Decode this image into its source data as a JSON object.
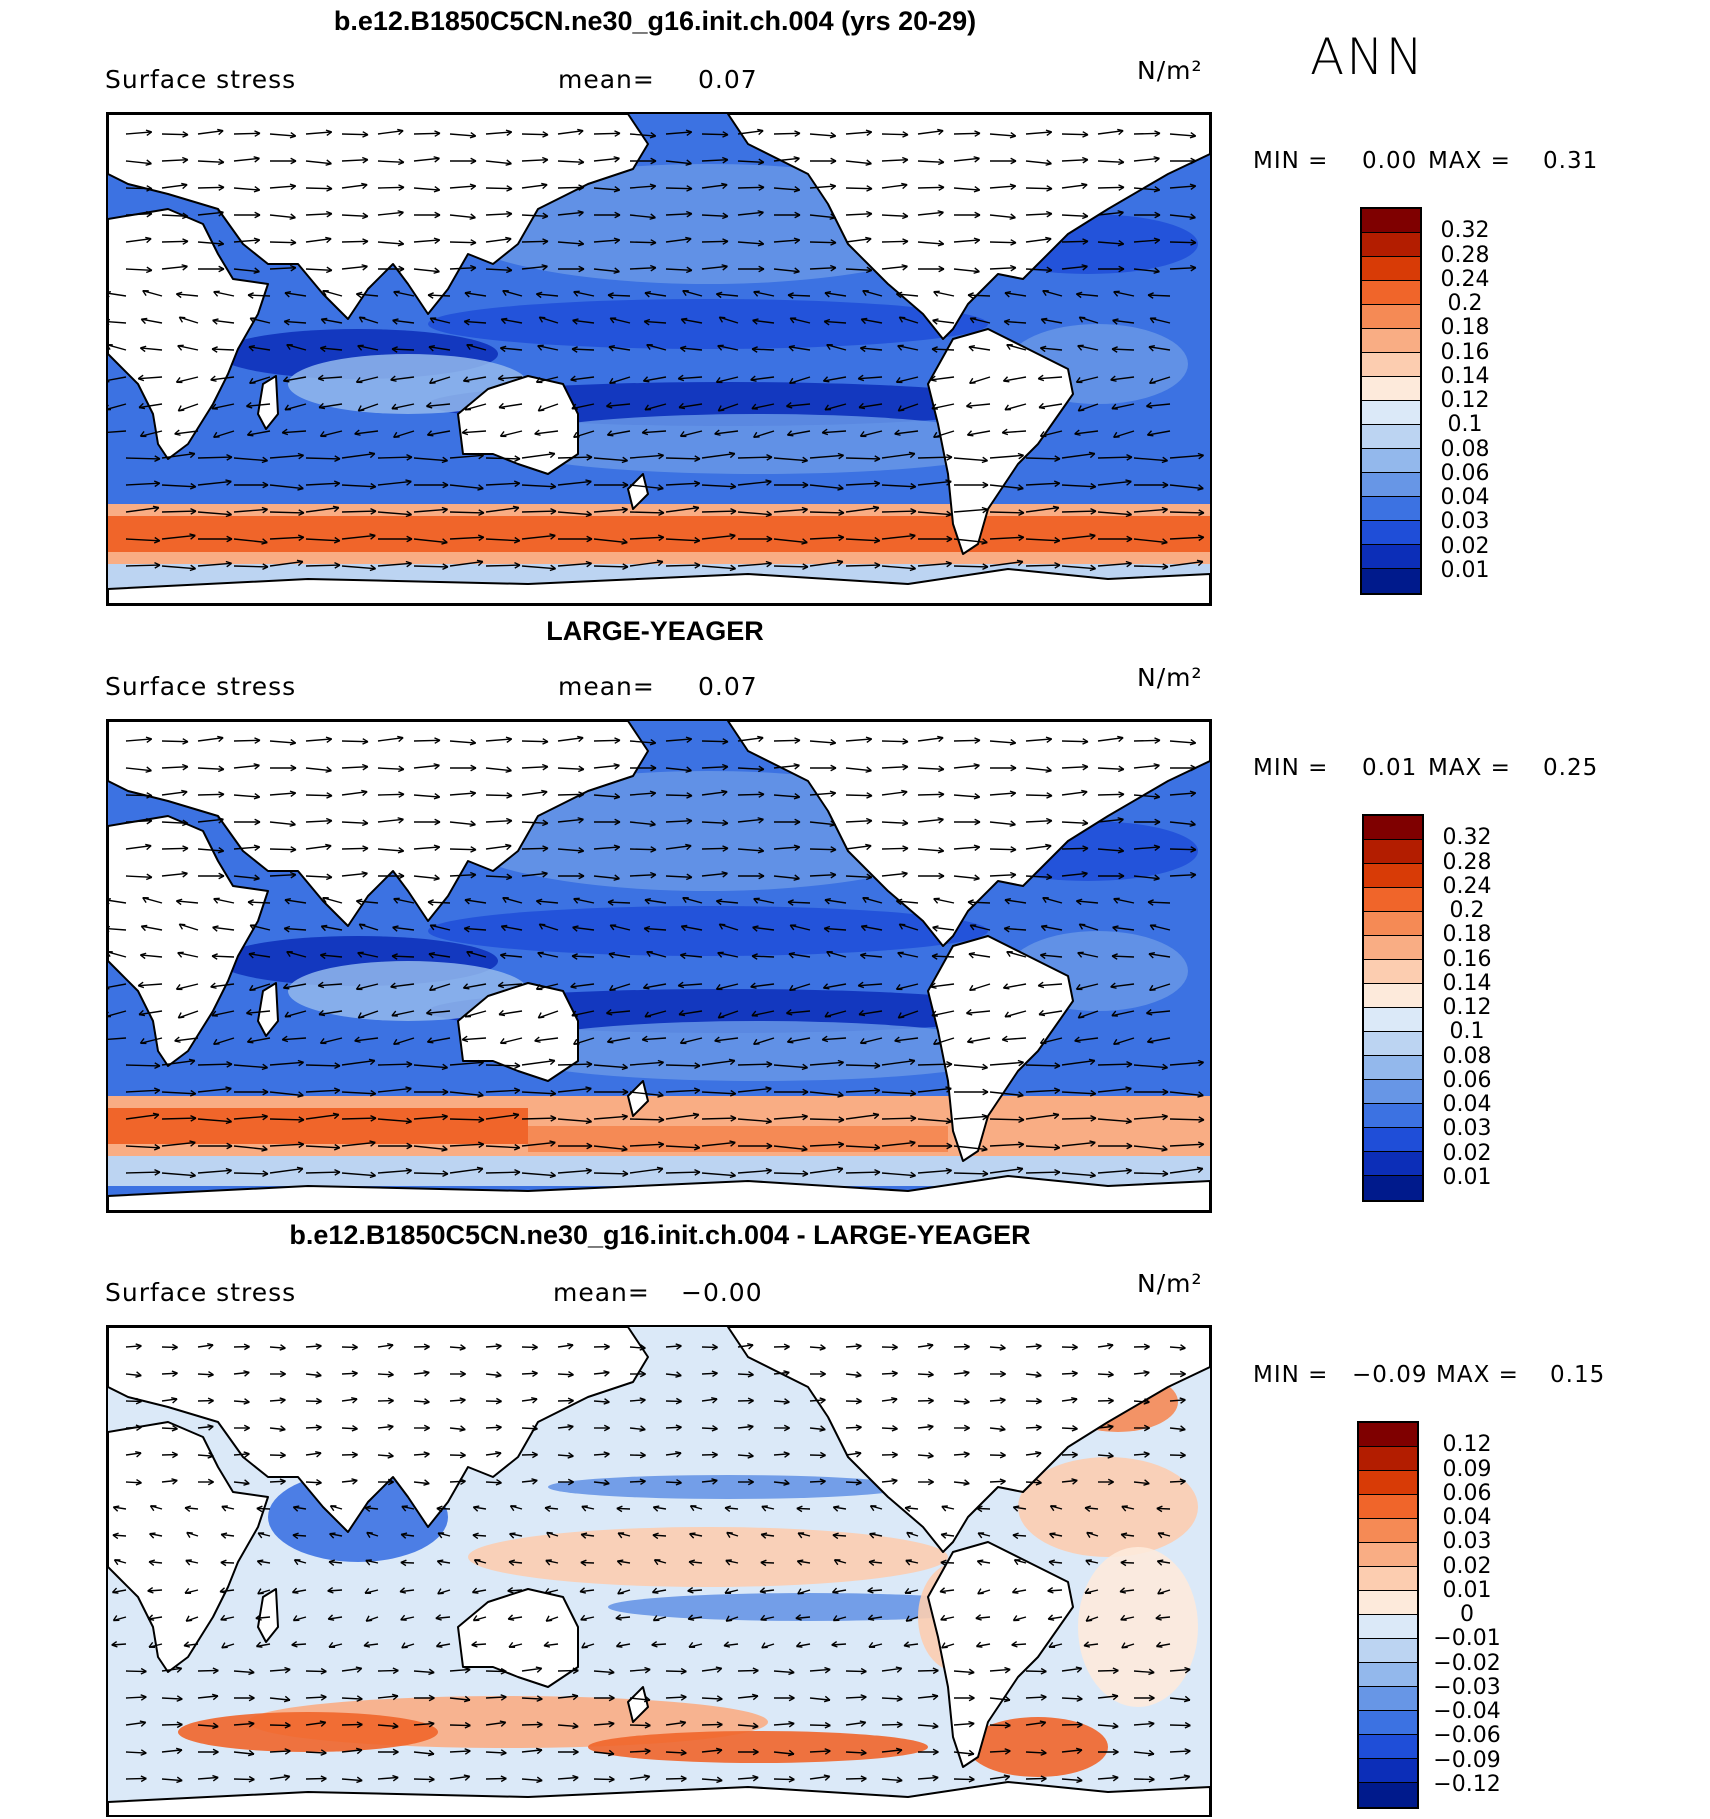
{
  "season": "ANN",
  "panels": [
    {
      "title": "b.e12.B1850C5CN.ne30_g16.init.ch.004 (yrs 20-29)",
      "variable": "Surface stress",
      "mean_label": "mean=",
      "mean_value": "0.07",
      "units": "N/m²",
      "min_label": "MIN =",
      "min_value": "0.00",
      "max_label": "MAX =",
      "max_value": "0.31",
      "colorbar": {
        "levels": [
          "0.32",
          "0.28",
          "0.24",
          "0.2",
          "0.18",
          "0.16",
          "0.14",
          "0.12",
          "0.1",
          "0.08",
          "0.06",
          "0.04",
          "0.03",
          "0.02",
          "0.01"
        ],
        "colors": [
          "#7f0000",
          "#b31d00",
          "#d83b06",
          "#f0652a",
          "#f58a55",
          "#f9ad84",
          "#fccdb0",
          "#fdeadb",
          "#dbe9f8",
          "#bcd4f2",
          "#93b8ec",
          "#6796e6",
          "#3c72e2",
          "#1f4ed8",
          "#0c2eb8",
          "#001a8c"
        ]
      },
      "map_style": "model"
    },
    {
      "title": "LARGE-YEAGER",
      "variable": "Surface stress",
      "mean_label": "mean=",
      "mean_value": "0.07",
      "units": "N/m²",
      "min_label": "MIN =",
      "min_value": "0.01",
      "max_label": "MAX =",
      "max_value": "0.25",
      "colorbar": {
        "levels": [
          "0.32",
          "0.28",
          "0.24",
          "0.2",
          "0.18",
          "0.16",
          "0.14",
          "0.12",
          "0.1",
          "0.08",
          "0.06",
          "0.04",
          "0.03",
          "0.02",
          "0.01"
        ],
        "colors": [
          "#7f0000",
          "#b31d00",
          "#d83b06",
          "#f0652a",
          "#f58a55",
          "#f9ad84",
          "#fccdb0",
          "#fdeadb",
          "#dbe9f8",
          "#bcd4f2",
          "#93b8ec",
          "#6796e6",
          "#3c72e2",
          "#1f4ed8",
          "#0c2eb8",
          "#001a8c"
        ]
      },
      "map_style": "obs"
    },
    {
      "title": "b.e12.B1850C5CN.ne30_g16.init.ch.004 - LARGE-YEAGER",
      "variable": "Surface stress",
      "mean_label": "mean=",
      "mean_value": "−0.00",
      "units": "N/m²",
      "min_label": "MIN =",
      "min_value": "−0.09",
      "max_label": "MAX =",
      "max_value": "0.15",
      "colorbar": {
        "levels": [
          "0.12",
          "0.09",
          "0.06",
          "0.04",
          "0.03",
          "0.02",
          "0.01",
          "0",
          "−0.01",
          "−0.02",
          "−0.03",
          "−0.04",
          "−0.06",
          "−0.09",
          "−0.12"
        ],
        "colors": [
          "#7f0000",
          "#b31d00",
          "#d83b06",
          "#f0652a",
          "#f58a55",
          "#f9ad84",
          "#fccdb0",
          "#fdeadb",
          "#dbe9f8",
          "#bcd4f2",
          "#93b8ec",
          "#6796e6",
          "#3c72e2",
          "#1f4ed8",
          "#0c2eb8",
          "#001a8c"
        ]
      },
      "map_style": "diff"
    }
  ]
}
